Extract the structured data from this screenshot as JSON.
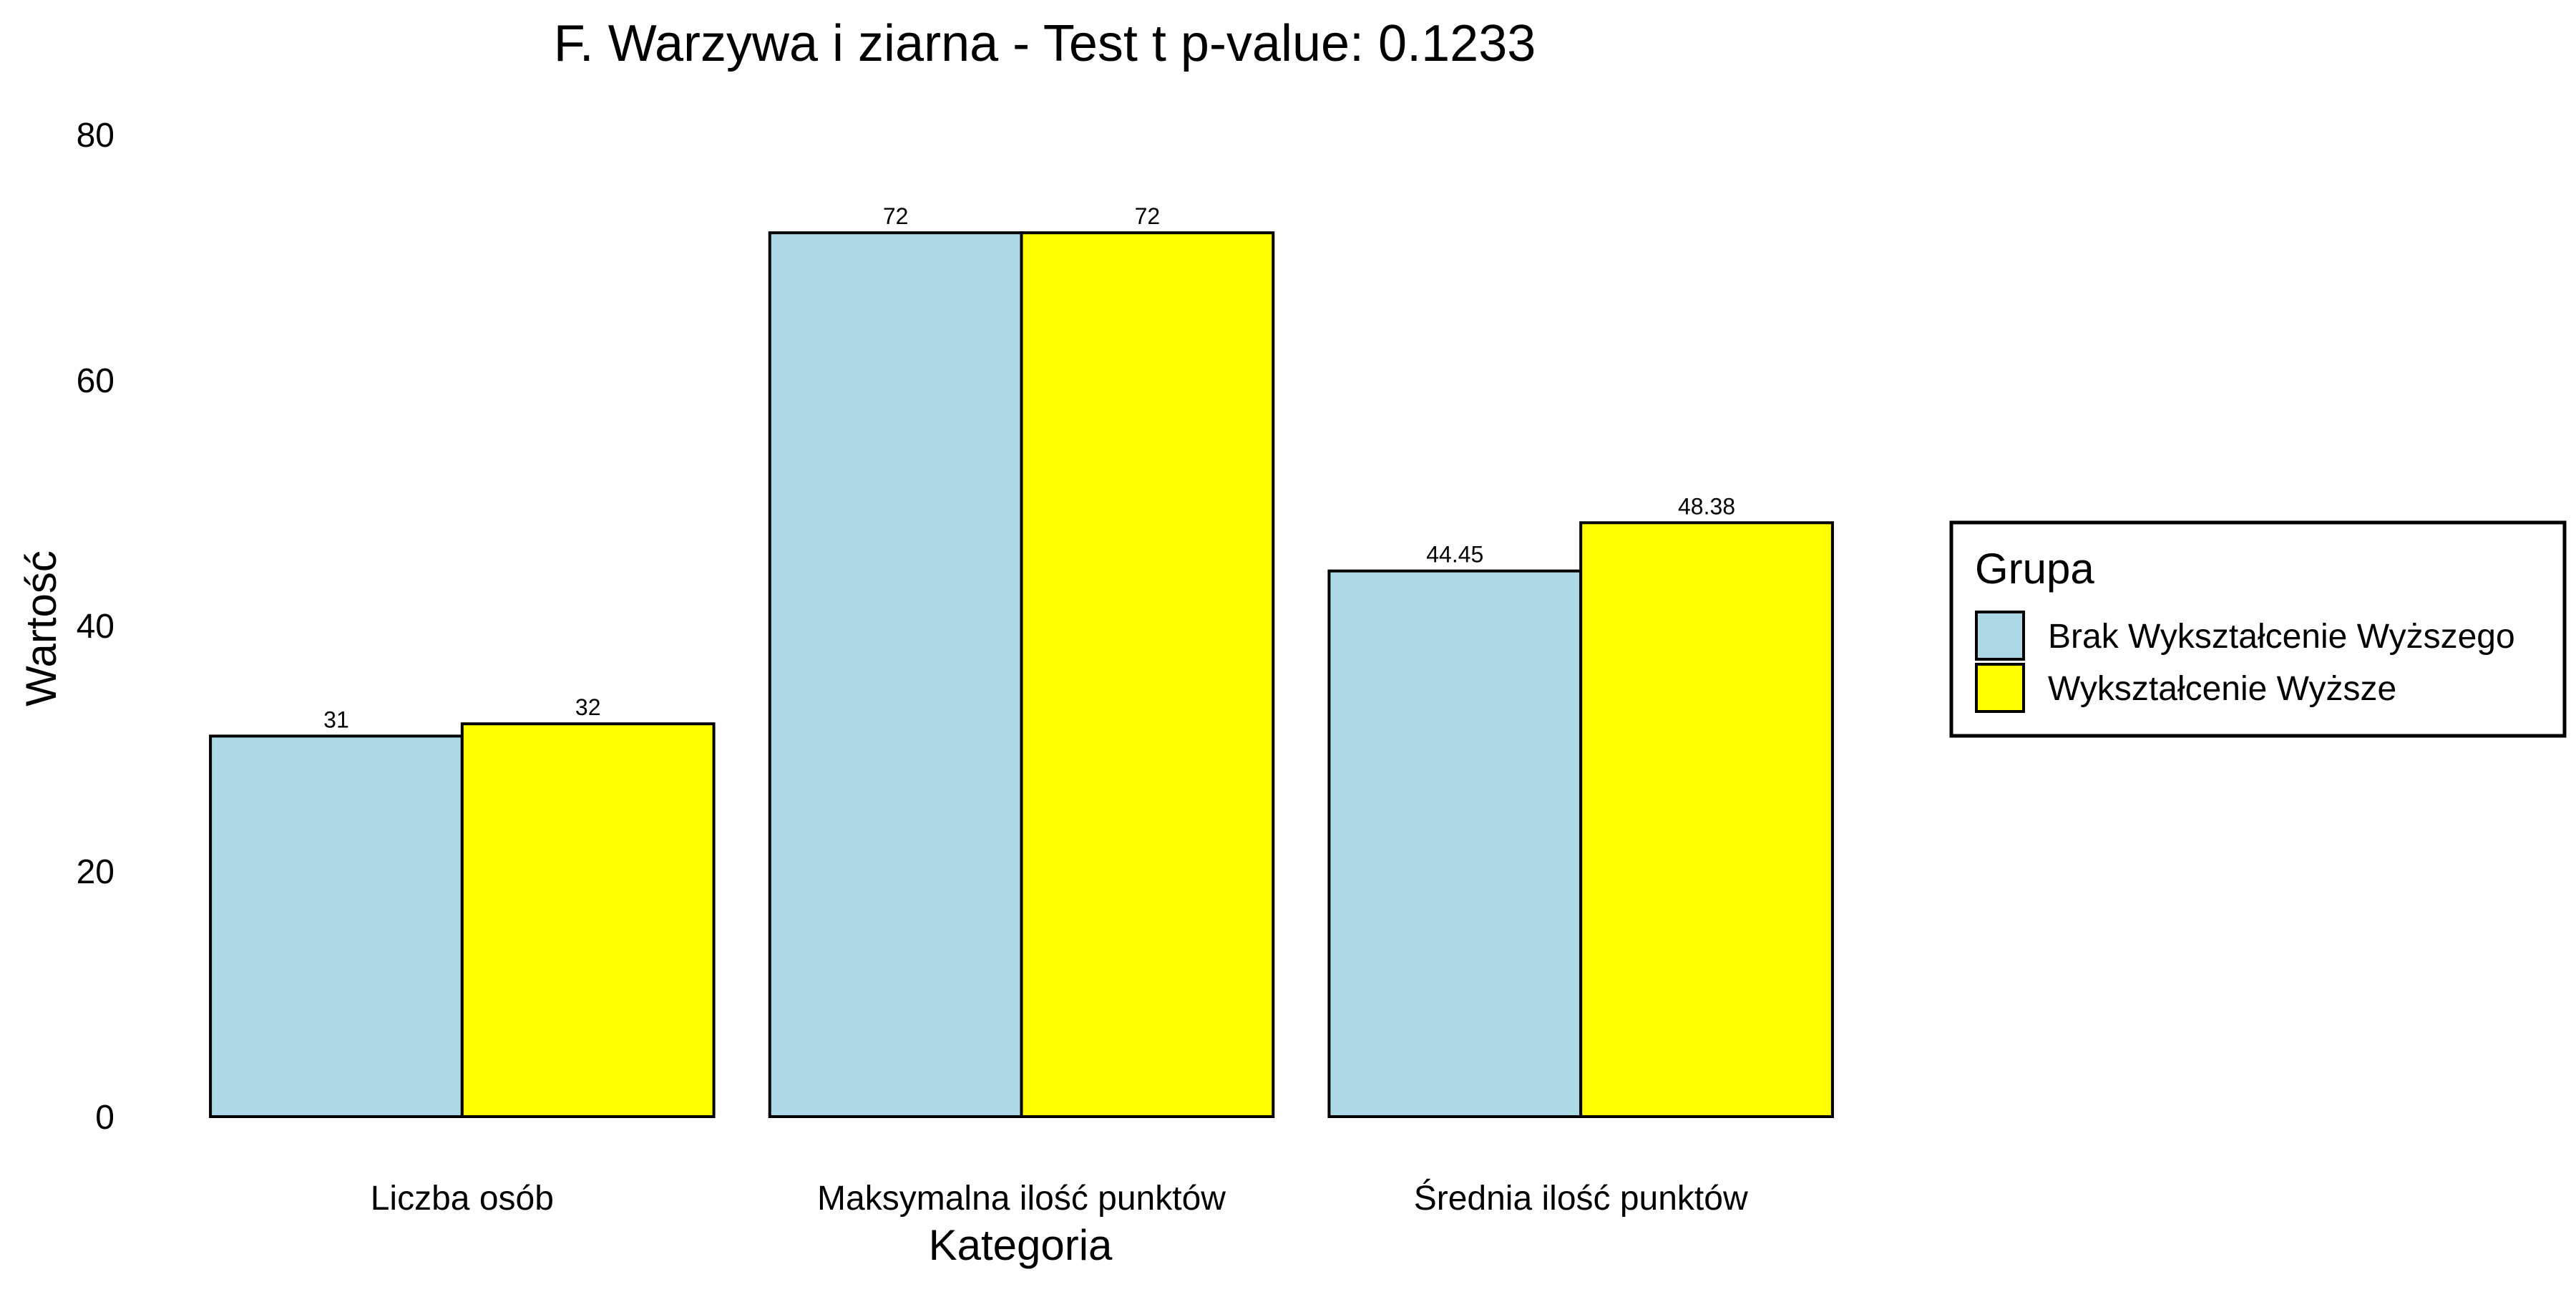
{
  "chart_data": {
    "type": "bar",
    "title": "F. Warzywa i ziarna - Test t p-value: 0.1233",
    "xlabel": "Kategoria",
    "ylabel": "Wartość",
    "ylim": [
      0,
      80
    ],
    "yticks": [
      0,
      20,
      40,
      60,
      80
    ],
    "grid": false,
    "categories": [
      "Liczba osób",
      "Maksymalna ilość punktów",
      "Średnia ilość punktów"
    ],
    "series": [
      {
        "name": "Brak Wykształcenie Wyższego",
        "color": "#add8e6",
        "values": [
          31,
          72,
          44.45
        ],
        "labels": [
          "31",
          "72",
          "44.45"
        ]
      },
      {
        "name": "Wykształcenie Wyższe",
        "color": "#ffff00",
        "values": [
          32,
          72,
          48.38
        ],
        "labels": [
          "32",
          "72",
          "48.38"
        ]
      }
    ],
    "legend": {
      "title": "Grupa",
      "position": "right"
    }
  }
}
